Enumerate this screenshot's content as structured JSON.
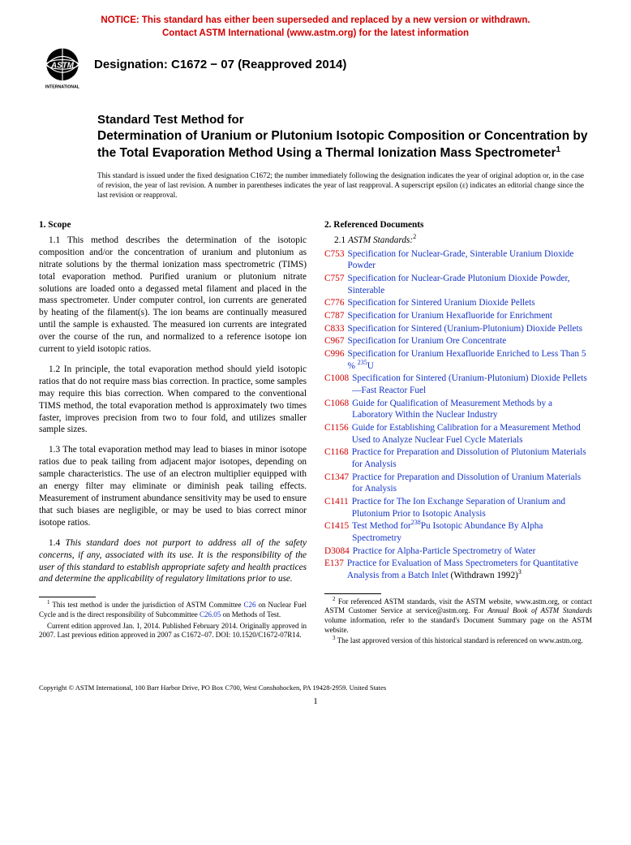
{
  "notice": {
    "line1": "NOTICE: This standard has either been superseded and replaced by a new version or withdrawn.",
    "line2": "Contact ASTM International (www.astm.org) for the latest information"
  },
  "logo": {
    "top_text": "INTERNATIONAL"
  },
  "designation": "Designation: C1672 − 07 (Reapproved 2014)",
  "title": {
    "lead": "Standard Test Method for",
    "main": "Determination of Uranium or Plutonium Isotopic Composition or Concentration by the Total Evaporation Method Using a Thermal Ionization Mass Spectrometer",
    "sup": "1"
  },
  "issuance": "This standard is issued under the fixed designation C1672; the number immediately following the designation indicates the year of original adoption or, in the case of revision, the year of last revision. A number in parentheses indicates the year of last reapproval. A superscript epsilon (ε) indicates an editorial change since the last revision or reapproval.",
  "scope": {
    "heading": "1. Scope",
    "p1": "1.1 This method describes the determination of the isotopic composition and/or the concentration of uranium and plutonium as nitrate solutions by the thermal ionization mass spectrometric (TIMS) total evaporation method. Purified uranium or plutonium nitrate solutions are loaded onto a degassed metal filament and placed in the mass spectrometer. Under computer control, ion currents are generated by heating of the filament(s). The ion beams are continually measured until the sample is exhausted. The measured ion currents are integrated over the course of the run, and normalized to a reference isotope ion current to yield isotopic ratios.",
    "p2": "1.2 In principle, the total evaporation method should yield isotopic ratios that do not require mass bias correction. In practice, some samples may require this bias correction. When compared to the conventional TIMS method, the total evaporation method is approximately two times faster, improves precision from two to four fold, and utilizes smaller sample sizes.",
    "p3": "1.3 The total evaporation method may lead to biases in minor isotope ratios due to peak tailing from adjacent major isotopes, depending on sample characteristics. The use of an electron multiplier equipped with an energy filter may eliminate or diminish peak tailing effects. Measurement of instrument abundance sensitivity may be used to ensure that such biases are negligible, or may be used to bias correct minor isotope ratios.",
    "p4": "1.4 This standard does not purport to address all of the safety concerns, if any, associated with its use. It is the responsibility of the user of this standard to establish appropriate safety and health practices and determine the applicability of regulatory limitations prior to use."
  },
  "refs": {
    "heading": "2. Referenced Documents",
    "sub_pre": "2.1 ",
    "sub_italic": "ASTM Standards:",
    "sub_sup": "2",
    "items": [
      {
        "code": "C753",
        "title": "Specification for Nuclear-Grade, Sinterable Uranium Dioxide Powder"
      },
      {
        "code": "C757",
        "title": "Specification for Nuclear-Grade Plutonium Dioxide Powder, Sinterable"
      },
      {
        "code": "C776",
        "title": "Specification for Sintered Uranium Dioxide Pellets"
      },
      {
        "code": "C787",
        "title": "Specification for Uranium Hexafluoride for Enrichment"
      },
      {
        "code": "C833",
        "title": "Specification for Sintered (Uranium-Plutonium) Dioxide Pellets"
      },
      {
        "code": "C967",
        "title": "Specification for Uranium Ore Concentrate"
      },
      {
        "code": "C996",
        "title": "Specification for Uranium Hexafluoride Enriched to Less Than 5 % ",
        "sup_pre": "235",
        "post": "U"
      },
      {
        "code": "C1008",
        "title": "Specification for Sintered (Uranium-Plutonium) Dioxide Pellets—Fast Reactor Fuel"
      },
      {
        "code": "C1068",
        "title": "Guide for Qualification of Measurement Methods by a Laboratory Within the Nuclear Industry"
      },
      {
        "code": "C1156",
        "title": "Guide for Establishing Calibration for a Measurement Method Used to Analyze Nuclear Fuel Cycle Materials"
      },
      {
        "code": "C1168",
        "title": "Practice for Preparation and Dissolution of Plutonium Materials for Analysis"
      },
      {
        "code": "C1347",
        "title": "Practice for Preparation and Dissolution of Uranium Materials for Analysis"
      },
      {
        "code": "C1411",
        "title": "Practice for The Ion Exchange Separation of Uranium and Plutonium Prior to Isotopic Analysis"
      },
      {
        "code": "C1415",
        "title": "Test Method for",
        "sup_pre": "238",
        "post": "Pu Isotopic Abundance By Alpha Spectrometry"
      },
      {
        "code": "D3084",
        "title": "Practice for Alpha-Particle Spectrometry of Water"
      },
      {
        "code": "E137",
        "title": "Practice for Evaluation of Mass Spectrometers for Quantitative Analysis from a Batch Inlet",
        "trail_plain": " (Withdrawn 1992)",
        "trail_sup": "3"
      }
    ]
  },
  "footnotes_left": {
    "f1a": " This test method is under the jurisdiction of ASTM Committee ",
    "f1_link1": "C26",
    "f1b": " on Nuclear Fuel Cycle and is the direct responsibility of Subcommittee ",
    "f1_link2": "C26.05",
    "f1c": " on Methods of Test.",
    "f1d": "Current edition approved Jan. 1, 2014. Published February 2014. Originally approved in 2007. Last previous edition approved in 2007 as C1672–07. DOI: 10.1520/C1672-07R14."
  },
  "footnotes_right": {
    "f2a": " For referenced ASTM standards, visit the ASTM website, www.astm.org, or contact ASTM Customer Service at service@astm.org. For ",
    "f2_italic": "Annual Book of ASTM Standards",
    "f2b": " volume information, refer to the standard's Document Summary page on the ASTM website.",
    "f3": " The last approved version of this historical standard is referenced on www.astm.org."
  },
  "copyright": "Copyright © ASTM International, 100 Barr Harbor Drive, PO Box C700, West Conshohocken, PA 19428-2959. United States",
  "pagenum": "1",
  "colors": {
    "notice_red": "#d10000",
    "ref_code_red": "#d10000",
    "link_blue": "#1434c6",
    "text": "#000000",
    "bg": "#ffffff"
  },
  "fonts": {
    "body_family": "Times New Roman",
    "heading_family": "Arial",
    "body_size_pt": 11.3,
    "issuance_size_pt": 9.2,
    "footnote_size_pt": 9,
    "title_size_pt": 15.5
  }
}
